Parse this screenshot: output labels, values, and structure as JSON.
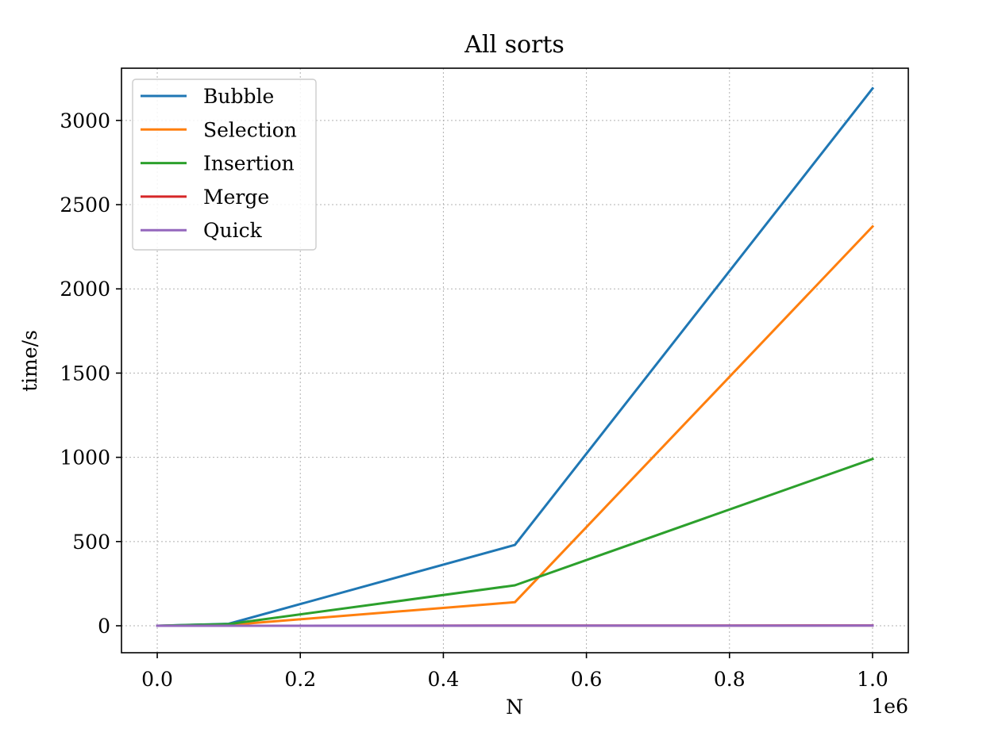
{
  "chart_data": {
    "type": "line",
    "title": "All sorts",
    "xlabel": "N",
    "ylabel": "time/s",
    "x_offset_label": "1e6",
    "x_scale": 1000000,
    "xlim": [
      -50000,
      1050000
    ],
    "ylim": [
      -160,
      3310
    ],
    "xticks": [
      0,
      200000,
      400000,
      600000,
      800000,
      1000000
    ],
    "xtick_labels": [
      "0.0",
      "0.2",
      "0.4",
      "0.6",
      "0.8",
      "1.0"
    ],
    "yticks": [
      0,
      500,
      1000,
      1500,
      2000,
      2500,
      3000
    ],
    "ytick_labels": [
      "0",
      "500",
      "1000",
      "1500",
      "2000",
      "2500",
      "3000"
    ],
    "grid": true,
    "legend_position": "upper-left",
    "x": [
      0,
      100000,
      500000,
      1000000
    ],
    "series": [
      {
        "name": "Bubble",
        "color": "#1f77b4",
        "values": [
          0,
          12,
          480,
          3190
        ]
      },
      {
        "name": "Selection",
        "color": "#ff7f0e",
        "values": [
          0,
          5,
          140,
          2370
        ]
      },
      {
        "name": "Insertion",
        "color": "#2ca02c",
        "values": [
          0,
          10,
          240,
          990
        ]
      },
      {
        "name": "Merge",
        "color": "#d62728",
        "values": [
          0,
          0.2,
          1,
          2
        ]
      },
      {
        "name": "Quick",
        "color": "#9467bd",
        "values": [
          0,
          0.1,
          0.5,
          1
        ]
      }
    ]
  }
}
